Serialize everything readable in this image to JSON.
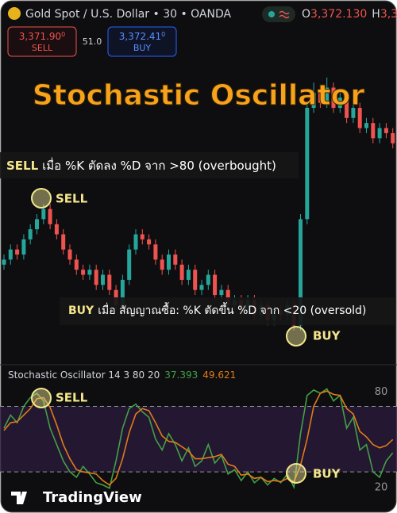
{
  "header": {
    "symbol": "Gold Spot / U.S. Dollar • 30 • OANDA",
    "open_label": "O",
    "open_value": "3,372.130",
    "high_label": "H",
    "high_value": "3,3"
  },
  "trade": {
    "sell_price": "3,371.90",
    "sell_price_small": "0",
    "sell_label": "SELL",
    "spread": "51.0",
    "buy_price": "3,372.41",
    "buy_price_small": "0",
    "buy_label": "BUY"
  },
  "title": "Stochastic Oscillator",
  "annotations": {
    "sell_rule_key": "SELL",
    "sell_rule_text": "เมื่อ %K ตัดลง %D จาก >80 (overbought)",
    "buy_rule_key": "BUY",
    "buy_rule_text": "เมื่อ สัญญาณซื้อ: %K ตัดขึ้น %D จาก <20 (oversold)",
    "price_sell_marker": "SELL",
    "price_buy_marker": "BUY",
    "osc_sell_marker": "SELL",
    "osc_buy_marker": "BUY"
  },
  "chart_data": [
    {
      "type": "candlestick",
      "ylim": [
        3330,
        3388
      ],
      "up_color": "#26a69a",
      "down_color": "#ef5350",
      "open": [
        3349,
        3350,
        3352,
        3351,
        3354,
        3356,
        3358,
        3360,
        3357,
        3355,
        3352,
        3350,
        3348,
        3347,
        3348,
        3345,
        3347,
        3344,
        3341,
        3346,
        3352,
        3355,
        3354,
        3353,
        3350,
        3348,
        3351,
        3349,
        3346,
        3348,
        3344,
        3345,
        3347,
        3343,
        3344,
        3341,
        3342,
        3340,
        3342,
        3339,
        3341,
        3338,
        3340,
        3339,
        3341,
        3337,
        3358,
        3380,
        3383,
        3381,
        3384,
        3380,
        3382,
        3378,
        3380,
        3376,
        3377,
        3374,
        3376,
        3375
      ],
      "high": [
        3351,
        3353,
        3353,
        3355,
        3357,
        3359,
        3361,
        3361,
        3358,
        3356,
        3353,
        3351,
        3349,
        3349,
        3349,
        3348,
        3348,
        3345,
        3347,
        3353,
        3356,
        3356,
        3355,
        3354,
        3351,
        3352,
        3352,
        3350,
        3349,
        3349,
        3346,
        3348,
        3348,
        3345,
        3345,
        3343,
        3343,
        3343,
        3343,
        3342,
        3342,
        3341,
        3341,
        3342,
        3342,
        3359,
        3381,
        3385,
        3384,
        3386,
        3385,
        3383,
        3383,
        3381,
        3381,
        3378,
        3378,
        3377,
        3377,
        3376
      ],
      "low": [
        3348,
        3349,
        3350,
        3350,
        3353,
        3355,
        3357,
        3356,
        3354,
        3351,
        3349,
        3347,
        3346,
        3346,
        3344,
        3344,
        3343,
        3340,
        3340,
        3345,
        3351,
        3353,
        3352,
        3349,
        3347,
        3347,
        3348,
        3345,
        3345,
        3343,
        3343,
        3344,
        3342,
        3342,
        3340,
        3340,
        3339,
        3339,
        3338,
        3338,
        3337,
        3337,
        3338,
        3338,
        3336,
        3336,
        3357,
        3379,
        3380,
        3380,
        3379,
        3379,
        3377,
        3377,
        3375,
        3375,
        3373,
        3373,
        3374,
        3372
      ],
      "close": [
        3350,
        3352,
        3351,
        3354,
        3356,
        3358,
        3360,
        3357,
        3355,
        3352,
        3350,
        3348,
        3347,
        3348,
        3345,
        3347,
        3344,
        3341,
        3346,
        3352,
        3355,
        3354,
        3353,
        3350,
        3348,
        3351,
        3349,
        3346,
        3348,
        3344,
        3345,
        3347,
        3343,
        3344,
        3341,
        3342,
        3340,
        3342,
        3339,
        3341,
        3338,
        3340,
        3339,
        3341,
        3337,
        3358,
        3380,
        3383,
        3381,
        3384,
        3380,
        3382,
        3378,
        3380,
        3376,
        3377,
        3374,
        3376,
        3375,
        3373
      ]
    },
    {
      "type": "line",
      "title": "Stochastic Oscillator 14 3 80 20",
      "ylim": [
        -9,
        100
      ],
      "yticks": [
        20,
        80
      ],
      "band_color": "#2a1a3a",
      "series": [
        {
          "color": "#43a047",
          "values": [
            60,
            72,
            65,
            80,
            88,
            92,
            85,
            60,
            45,
            30,
            20,
            15,
            25,
            18,
            10,
            8,
            5,
            30,
            60,
            78,
            82,
            75,
            70,
            50,
            40,
            55,
            45,
            30,
            42,
            25,
            30,
            45,
            28,
            35,
            18,
            22,
            12,
            20,
            10,
            15,
            8,
            14,
            10,
            18,
            6,
            55,
            90,
            95,
            92,
            96,
            85,
            90,
            60,
            70,
            40,
            45,
            20,
            15,
            30,
            37.393
          ]
        },
        {
          "color": "#e07b1a",
          "values": [
            58,
            65,
            66,
            72,
            78,
            87,
            88,
            79,
            63,
            45,
            32,
            22,
            20,
            19,
            18,
            12,
            8,
            14,
            32,
            56,
            73,
            78,
            76,
            65,
            53,
            48,
            47,
            43,
            39,
            32,
            32,
            33,
            34,
            36,
            27,
            25,
            17,
            18,
            14,
            15,
            11,
            12,
            11,
            14,
            11,
            26,
            50,
            80,
            92,
            94,
            91,
            90,
            78,
            73,
            57,
            52,
            45,
            42,
            44,
            49.621
          ]
        }
      ]
    }
  ],
  "branding": "TradingView"
}
